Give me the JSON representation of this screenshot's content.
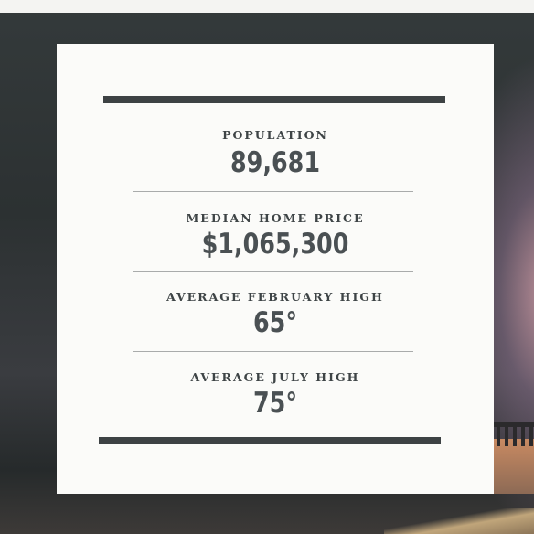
{
  "stats": [
    {
      "label": "POPULATION",
      "value": "89,681"
    },
    {
      "label": "MEDIAN HOME PRICE",
      "value": "$1,065,300"
    },
    {
      "label": "AVERAGE FEBRUARY HIGH",
      "value": "65°"
    },
    {
      "label": "AVERAGE JULY HIGH",
      "value": "75°"
    }
  ]
}
